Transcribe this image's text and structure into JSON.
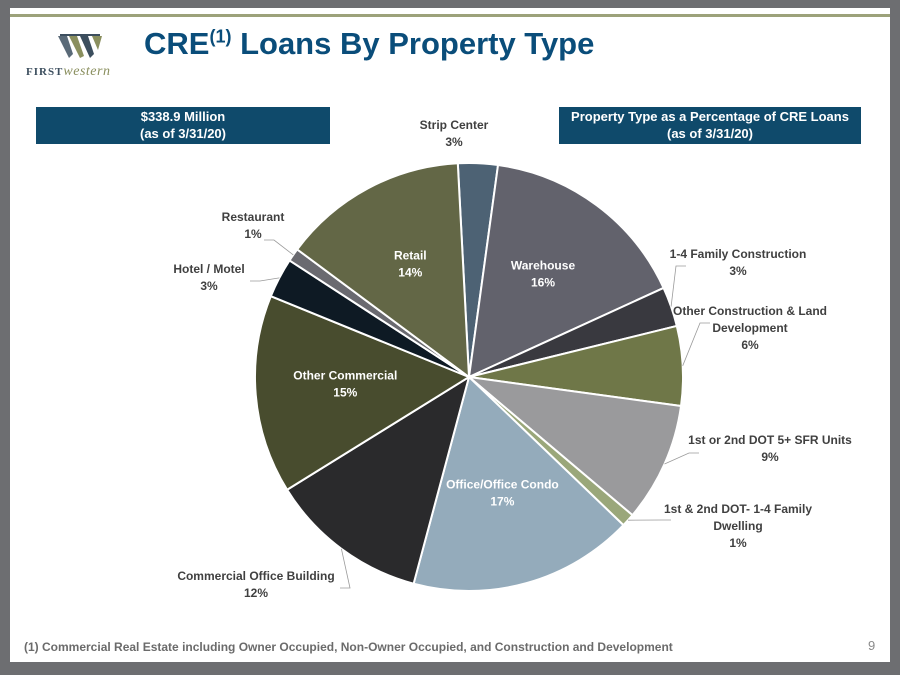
{
  "slide": {
    "title": "CRE",
    "title_sup": "(1)",
    "title_rest": " Loans By Property Type",
    "logo_first": "FIRST",
    "logo_western": "western",
    "box_left_line1": "$338.9 Million",
    "box_left_line2": "(as of 3/31/20)",
    "box_right_line1": "Property Type as a Percentage of CRE Loans",
    "box_right_line2": "(as of 3/31/20)",
    "footnote": "(1) Commercial Real Estate including Owner Occupied, Non-Owner Occupied, and Construction and Development",
    "page_number": "9"
  },
  "colors": {
    "title": "#0a4d7a",
    "box": "#0f4a6b",
    "label": "#404040"
  },
  "chart_data": {
    "type": "pie",
    "start_angle_deg": -3,
    "slices": [
      {
        "name": "Strip Center",
        "value": 3,
        "label": "3%",
        "color": "#4d6274",
        "inside": false
      },
      {
        "name": "Warehouse",
        "value": 16,
        "label": "16%",
        "color": "#62626c",
        "inside": true
      },
      {
        "name": "1-4 Family Construction",
        "value": 3,
        "label": "3%",
        "color": "#39393f",
        "inside": false
      },
      {
        "name": "Other Construction & Land Development",
        "value": 6,
        "label": "6%",
        "color": "#6f7748",
        "inside": false
      },
      {
        "name": "1st or 2nd DOT 5+ SFR Units",
        "value": 9,
        "label": "9%",
        "color": "#9a9a9c",
        "inside": false
      },
      {
        "name": "1st & 2nd DOT- 1-4 Family Dwelling",
        "value": 1,
        "label": "1%",
        "color": "#9aa77a",
        "inside": false
      },
      {
        "name": "Office/Office Condo",
        "value": 17,
        "label": "17%",
        "color": "#94abbb",
        "inside": true
      },
      {
        "name": "Commercial Office Building",
        "value": 12,
        "label": "12%",
        "color": "#2a2a2c",
        "inside": false
      },
      {
        "name": "Other Commercial",
        "value": 15,
        "label": "15%",
        "color": "#484c2e",
        "inside": true
      },
      {
        "name": "Hotel / Motel",
        "value": 3,
        "label": "3%",
        "color": "#0e1a24",
        "inside": false
      },
      {
        "name": "Restaurant",
        "value": 1,
        "label": "1%",
        "color": "#6a6a70",
        "inside": false
      },
      {
        "name": "Retail",
        "value": 14,
        "label": "14%",
        "color": "#636746",
        "inside": true
      }
    ]
  }
}
